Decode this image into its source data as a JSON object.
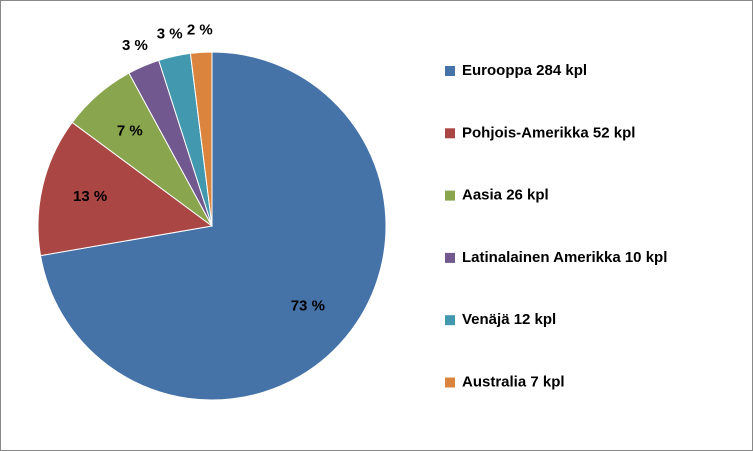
{
  "chart_data": {
    "type": "pie",
    "categories": [
      "Eurooppa 284 kpl",
      "Pohjois-Amerikka 52 kpl",
      "Aasia 26 kpl",
      "Latinalainen Amerikka 10 kpl",
      "Venäjä 12 kpl",
      "Australia 7 kpl"
    ],
    "values": [
      73,
      13,
      7,
      3,
      3,
      2
    ],
    "value_labels": [
      "73 %",
      "13 %",
      "7 %",
      "3 %",
      "3 %",
      "2 %"
    ],
    "colors": [
      "#4572a7",
      "#aa4643",
      "#89a54e",
      "#71588f",
      "#4198af",
      "#db843d"
    ],
    "legend": "right"
  }
}
